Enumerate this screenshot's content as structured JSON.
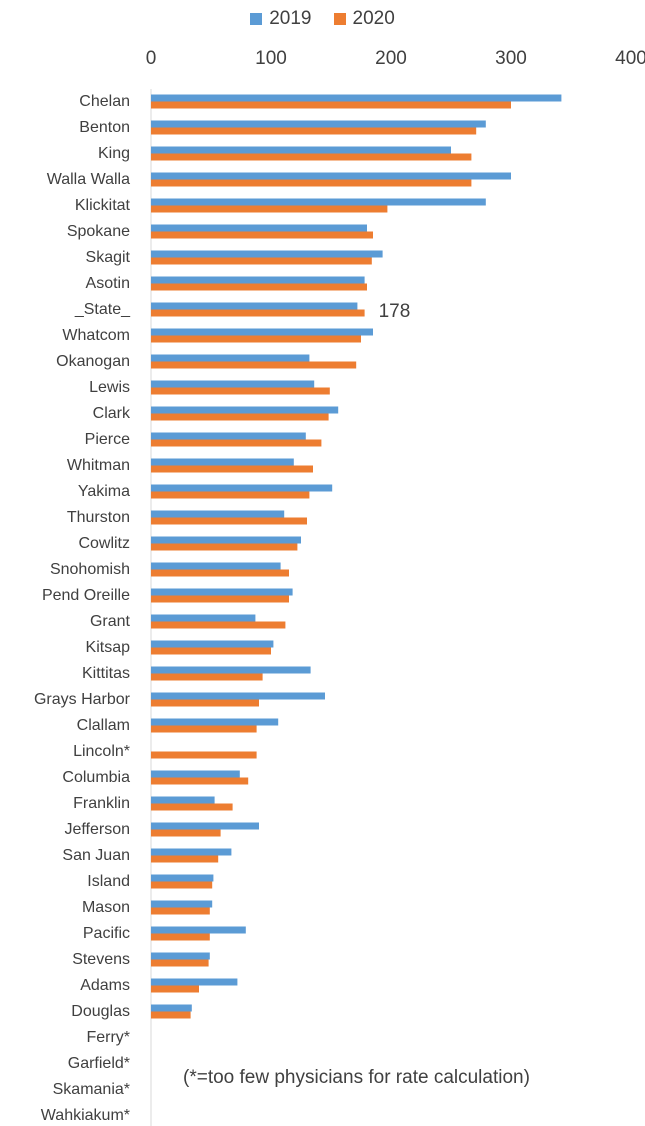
{
  "chart_data": {
    "type": "bar",
    "orientation": "horizontal",
    "legend_position": "top",
    "xlim": [
      0,
      400
    ],
    "x_ticks": [
      0,
      100,
      200,
      300,
      400
    ],
    "x_axis_position": "top",
    "grid": false,
    "categories": [
      "Chelan",
      "Benton",
      "King",
      "Walla Walla",
      "Klickitat",
      "Spokane",
      "Skagit",
      "Asotin",
      "_State_",
      "Whatcom",
      "Okanogan",
      "Lewis",
      "Clark",
      "Pierce",
      "Whitman",
      "Yakima",
      "Thurston",
      "Cowlitz",
      "Snohomish",
      "Pend Oreille",
      "Grant",
      "Kitsap",
      "Kittitas",
      "Grays Harbor",
      "Clallam",
      "Lincoln*",
      "Columbia",
      "Franklin",
      "Jefferson",
      "San Juan",
      "Island",
      "Mason",
      "Pacific",
      "Stevens",
      "Adams",
      "Douglas",
      "Ferry*",
      "Garfield*",
      "Skamania*",
      "Wahkiakum*"
    ],
    "series": [
      {
        "name": "2019",
        "color": "#5B9BD5",
        "values": [
          342,
          279,
          250,
          300,
          279,
          180,
          193,
          178,
          172,
          185,
          132,
          136,
          156,
          129,
          119,
          151,
          111,
          125,
          108,
          118,
          87,
          102,
          133,
          145,
          106,
          null,
          74,
          53,
          90,
          67,
          52,
          51,
          79,
          49,
          72,
          34,
          null,
          null,
          null,
          null
        ]
      },
      {
        "name": "2020",
        "color": "#ED7D31",
        "values": [
          300,
          271,
          267,
          267,
          197,
          185,
          184,
          180,
          178,
          175,
          171,
          149,
          148,
          142,
          135,
          132,
          130,
          122,
          115,
          115,
          112,
          100,
          93,
          90,
          88,
          88,
          81,
          68,
          58,
          56,
          51,
          49,
          49,
          48,
          40,
          33,
          null,
          null,
          null,
          null
        ]
      }
    ],
    "annotations": [
      {
        "label": "178",
        "category": "_State_"
      }
    ],
    "note": "(*=too few physicians for rate calculation)"
  }
}
